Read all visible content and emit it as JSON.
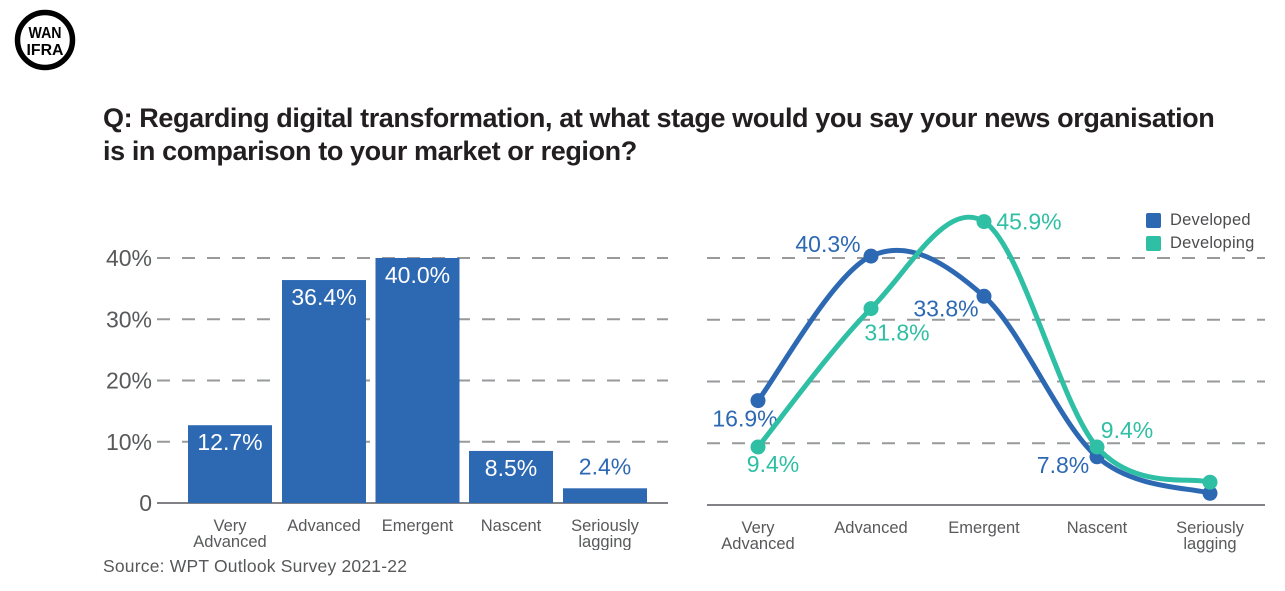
{
  "logo": {
    "line1": "WAN",
    "line2": "IFRA"
  },
  "header": {
    "title_line1": "Q: Regarding digital transformation, at what stage would you say your news organisation",
    "title_line2": "is in comparison to your market or region?"
  },
  "source": "Source: WPT Outlook Survey 2021-22",
  "colors": {
    "blue": "#2d68b3",
    "teal": "#2fbfa4",
    "grid_gray": "#97999b",
    "baseline_gray": "#808285",
    "axis_text": "#58595b",
    "legend_text": "#4d4d4f",
    "bar_label_inside": "#ffffff"
  },
  "chart_data": [
    {
      "type": "bar",
      "categories": [
        "Very\nAdvanced",
        "Advanced",
        "Emergent",
        "Nascent",
        "Seriously\nlagging"
      ],
      "values": [
        12.7,
        36.4,
        40.0,
        8.5,
        2.4
      ],
      "value_labels": [
        "12.7%",
        "36.4%",
        "40.0%",
        "8.5%",
        "2.4%"
      ],
      "xlabel": "",
      "ylabel": "",
      "ylim": [
        0,
        43
      ],
      "yticks": [
        0,
        10,
        20,
        30,
        40
      ],
      "ytick_labels": [
        "0",
        "10%",
        "20%",
        "30%",
        "40%"
      ],
      "grid": "dashed-horizontal",
      "bar_color": "#2d68b3"
    },
    {
      "type": "line",
      "categories": [
        "Very\nAdvanced",
        "Advanced",
        "Emergent",
        "Nascent",
        "Seriously\nlagging"
      ],
      "series": [
        {
          "name": "Developed",
          "color": "#2d68b3",
          "values": [
            16.9,
            40.3,
            33.8,
            7.8,
            1.9
          ],
          "point_labels": [
            "16.9%",
            "40.3%",
            "33.8%",
            "7.8%",
            ""
          ]
        },
        {
          "name": "Developing",
          "color": "#2fbfa4",
          "values": [
            9.4,
            31.8,
            45.9,
            9.4,
            3.7
          ],
          "point_labels": [
            "9.4%",
            "31.8%",
            "45.9%",
            "9.4%",
            ""
          ]
        }
      ],
      "ylim": [
        0,
        50
      ],
      "yticks": [
        10,
        20,
        30,
        40
      ],
      "ytick_labels_shown": false,
      "grid": "dashed-horizontal",
      "smooth": true,
      "markers": true,
      "legend_position": "top-right"
    }
  ]
}
